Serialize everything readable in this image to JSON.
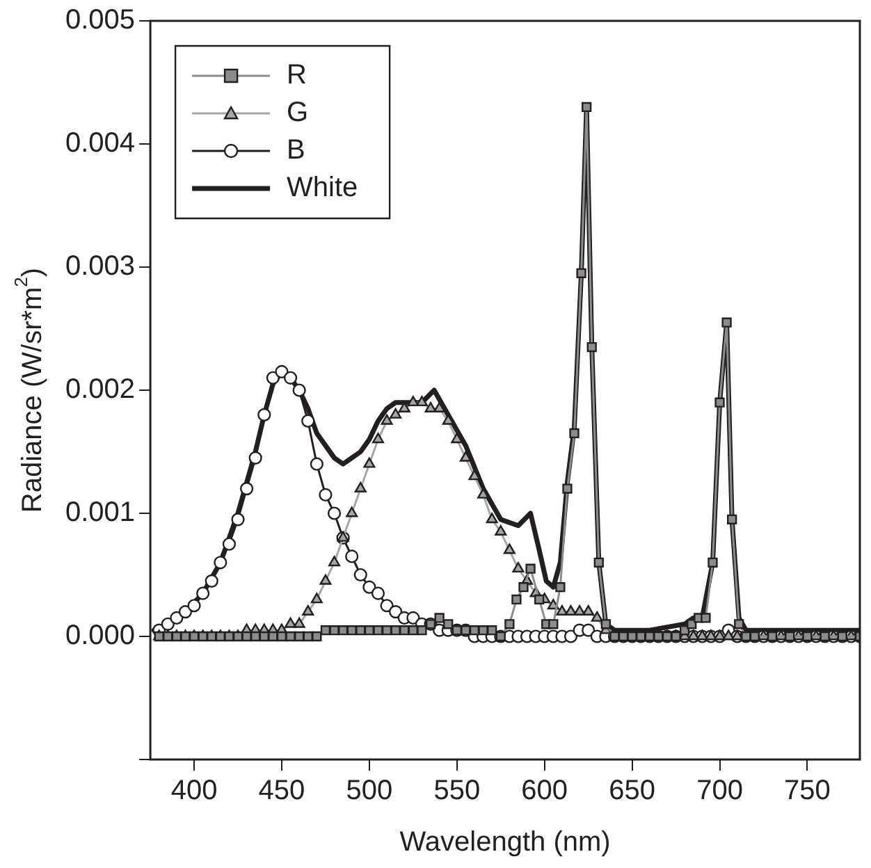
{
  "chart_data": {
    "type": "line",
    "xlabel": "Wavelength (nm)",
    "ylabel": "Radiance (W/sr*m$^{2}$)",
    "xlim": [
      375,
      780
    ],
    "xticks": [
      400,
      450,
      500,
      550,
      600,
      650,
      700,
      750
    ],
    "ylim": [
      -0.001,
      0.005
    ],
    "yticks": [
      {
        "value": -0.001,
        "label": null
      },
      {
        "value": 0,
        "label": "0.000"
      },
      {
        "value": 0.001,
        "label": "0.001"
      },
      {
        "value": 0.002,
        "label": "0.002"
      },
      {
        "value": 0.003,
        "label": "0.003"
      },
      {
        "value": 0.004,
        "label": "0.004"
      },
      {
        "value": 0.005,
        "label": "0.005"
      }
    ],
    "grid": false,
    "legend": "top left",
    "series": [
      {
        "name": "R",
        "color": "#8c8c8c",
        "marker": "square",
        "x": [
          380,
          385,
          390,
          395,
          400,
          405,
          410,
          415,
          420,
          425,
          430,
          435,
          440,
          445,
          450,
          455,
          460,
          465,
          470,
          475,
          480,
          485,
          490,
          495,
          500,
          505,
          510,
          515,
          520,
          525,
          530,
          535,
          540,
          545,
          550,
          555,
          560,
          565,
          570,
          575,
          580,
          584,
          588,
          592,
          597,
          601,
          605,
          609,
          613,
          617,
          621,
          624,
          627,
          631,
          635,
          640,
          645,
          650,
          655,
          660,
          665,
          670,
          675,
          680,
          684,
          688,
          692,
          696,
          700,
          704,
          707,
          711,
          715,
          720,
          730,
          740,
          750,
          760,
          770,
          780
        ],
        "values": [
          0,
          0,
          0,
          0,
          0,
          0,
          0,
          0,
          0,
          0,
          0,
          0,
          0,
          0,
          0,
          0,
          0,
          0,
          0,
          5e-05,
          5e-05,
          5e-05,
          5e-05,
          5e-05,
          5e-05,
          5e-05,
          5e-05,
          5e-05,
          5e-05,
          5e-05,
          5e-05,
          0.0001,
          0.00015,
          0.0001,
          5e-05,
          5e-05,
          5e-05,
          5e-05,
          5e-05,
          0,
          0.0001,
          0.0003,
          0.0004,
          0.00055,
          0.0003,
          0.0001,
          0.0001,
          0.0004,
          0.0012,
          0.00165,
          0.00295,
          0.0043,
          0.00235,
          0.0006,
          0.0001,
          0,
          0,
          0,
          0,
          0,
          0,
          0,
          0,
          5e-05,
          0.0001,
          0.00015,
          0.00015,
          0.0006,
          0.0019,
          0.00255,
          0.00095,
          0.0001,
          0,
          0,
          0,
          0,
          0,
          0,
          0,
          0
        ]
      },
      {
        "name": "G",
        "color": "#a6a6a6",
        "marker": "triangle",
        "x": [
          380,
          385,
          390,
          395,
          400,
          405,
          410,
          415,
          420,
          425,
          430,
          435,
          440,
          445,
          450,
          455,
          460,
          465,
          470,
          475,
          480,
          485,
          490,
          495,
          500,
          505,
          510,
          515,
          520,
          525,
          530,
          535,
          540,
          545,
          550,
          555,
          560,
          565,
          570,
          575,
          580,
          585,
          590,
          595,
          600,
          605,
          610,
          615,
          620,
          625,
          630,
          635,
          640,
          645,
          650,
          655,
          660,
          665,
          670,
          675,
          680,
          685,
          690,
          695,
          700,
          705,
          710,
          715,
          720,
          725,
          730,
          735,
          740,
          745,
          750,
          755,
          760,
          765,
          770,
          775,
          780
        ],
        "values": [
          0,
          0,
          0,
          0,
          0,
          0,
          0,
          0,
          0,
          0,
          5e-05,
          5e-05,
          5e-05,
          5e-05,
          5e-05,
          0.0001,
          0.0001,
          0.0002,
          0.0003,
          0.00045,
          0.0006,
          0.0008,
          0.001,
          0.0012,
          0.0014,
          0.0016,
          0.00175,
          0.0018,
          0.00185,
          0.0019,
          0.0019,
          0.00185,
          0.00185,
          0.00175,
          0.0016,
          0.00145,
          0.0013,
          0.00115,
          0.00095,
          0.00085,
          0.0007,
          0.00055,
          0.00045,
          0.00035,
          0.0003,
          0.00025,
          0.0002,
          0.0002,
          0.0002,
          0.0002,
          0.00015,
          5e-05,
          0,
          0,
          0,
          0,
          0,
          0,
          0,
          0,
          0,
          0,
          0,
          0,
          0,
          0,
          0,
          0,
          0,
          0,
          0,
          0,
          0,
          0,
          0,
          0,
          0,
          0,
          0,
          0,
          0
        ]
      },
      {
        "name": "B",
        "color": "#231f20",
        "marker": "circle",
        "x": [
          380,
          385,
          390,
          395,
          400,
          405,
          410,
          415,
          420,
          425,
          430,
          435,
          440,
          445,
          450,
          455,
          460,
          465,
          470,
          475,
          480,
          485,
          490,
          495,
          500,
          505,
          510,
          515,
          520,
          525,
          530,
          535,
          540,
          545,
          550,
          555,
          560,
          565,
          570,
          575,
          580,
          585,
          590,
          595,
          600,
          605,
          610,
          615,
          620,
          625,
          630,
          635,
          640,
          645,
          650,
          655,
          660,
          665,
          670,
          675,
          680,
          685,
          690,
          695,
          700,
          705,
          710,
          715,
          720,
          725,
          730,
          735,
          740,
          745,
          750,
          755,
          760,
          765,
          770,
          775,
          780
        ],
        "values": [
          5e-05,
          0.0001,
          0.00015,
          0.0002,
          0.00025,
          0.00035,
          0.00045,
          0.0006,
          0.00075,
          0.00095,
          0.0012,
          0.00145,
          0.0018,
          0.0021,
          0.00215,
          0.0021,
          0.002,
          0.00175,
          0.0014,
          0.00115,
          0.001,
          0.0008,
          0.00065,
          0.0005,
          0.0004,
          0.00035,
          0.00025,
          0.0002,
          0.00015,
          0.00015,
          0.0001,
          0.0001,
          5e-05,
          5e-05,
          5e-05,
          5e-05,
          0,
          0,
          0,
          0,
          0,
          0,
          0,
          0,
          0,
          0,
          0,
          0,
          5e-05,
          5e-05,
          0,
          0,
          0,
          0,
          0,
          0,
          0,
          0,
          0,
          0,
          0,
          0,
          0,
          0,
          0,
          5e-05,
          0,
          0,
          0,
          0,
          0,
          0,
          0,
          0,
          0,
          0,
          0,
          0,
          0,
          0,
          0
        ]
      },
      {
        "name": "White",
        "color": "#231f20",
        "marker": "none",
        "x": [
          377,
          385,
          395,
          405,
          415,
          425,
          435,
          440,
          445,
          450,
          455,
          460,
          465,
          470,
          475,
          480,
          485,
          490,
          495,
          500,
          505,
          510,
          515,
          520,
          525,
          530,
          537,
          545,
          555,
          565,
          575,
          585,
          592,
          597,
          601,
          605,
          609,
          613,
          617,
          621,
          624,
          627,
          631,
          635,
          640,
          660,
          680,
          685,
          690,
          696,
          700,
          704,
          707,
          711,
          715,
          740,
          760,
          780
        ],
        "values": [
          5e-05,
          0.0001,
          0.0002,
          0.00035,
          0.0006,
          0.001,
          0.0015,
          0.0018,
          0.00205,
          0.00215,
          0.0021,
          0.002,
          0.00185,
          0.00165,
          0.00155,
          0.00145,
          0.0014,
          0.00145,
          0.0015,
          0.0016,
          0.00175,
          0.00185,
          0.0019,
          0.0019,
          0.0019,
          0.0019,
          0.002,
          0.0018,
          0.00155,
          0.0012,
          0.00095,
          0.0009,
          0.001,
          0.0007,
          0.00045,
          0.0004,
          0.0006,
          0.00125,
          0.0017,
          0.00295,
          0.0043,
          0.00235,
          0.0006,
          0.0001,
          5e-05,
          5e-05,
          0.0001,
          0.00015,
          0.00015,
          0.0006,
          0.0019,
          0.00255,
          0.00095,
          0.00015,
          5e-05,
          5e-05,
          5e-05,
          5e-05
        ]
      }
    ]
  }
}
